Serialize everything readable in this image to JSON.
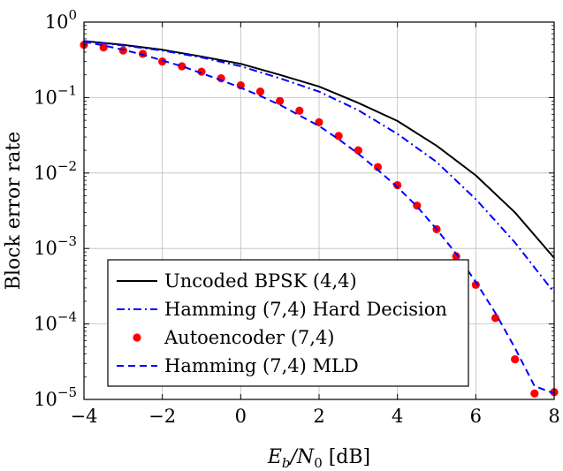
{
  "chart_data": {
    "type": "line",
    "xlabel": "E_b/N_0 [dB]",
    "xlabel_parts": {
      "main": "E",
      "sub1": "b",
      "mid": "/N",
      "sub2": "0",
      "unit": " [dB]"
    },
    "ylabel": "Block error rate",
    "xlim": [
      -4,
      8
    ],
    "ylim": [
      1e-05,
      1
    ],
    "yscale": "log",
    "grid": true,
    "legend_position": "bottom-left",
    "xticks": [
      {
        "value": -4,
        "label": "−4"
      },
      {
        "value": -2,
        "label": "−2"
      },
      {
        "value": 0,
        "label": "0"
      },
      {
        "value": 2,
        "label": "2"
      },
      {
        "value": 4,
        "label": "4"
      },
      {
        "value": 6,
        "label": "6"
      },
      {
        "value": 8,
        "label": "8"
      }
    ],
    "yticks": [
      {
        "value": 1,
        "base": "10",
        "exp": "0"
      },
      {
        "value": 0.1,
        "base": "10",
        "exp": "−1"
      },
      {
        "value": 0.01,
        "base": "10",
        "exp": "−2"
      },
      {
        "value": 0.001,
        "base": "10",
        "exp": "−3"
      },
      {
        "value": 0.0001,
        "base": "10",
        "exp": "−4"
      },
      {
        "value": 1e-05,
        "base": "10",
        "exp": "−5"
      }
    ],
    "series": [
      {
        "name": "Uncoded BPSK (4,4)",
        "color": "#000000",
        "style": "solid",
        "x": [
          -4,
          -3,
          -2,
          -1,
          0,
          1,
          2,
          3,
          4,
          5,
          6,
          7,
          8
        ],
        "y": [
          0.56,
          0.5,
          0.43,
          0.35,
          0.28,
          0.2,
          0.14,
          0.085,
          0.049,
          0.023,
          0.0093,
          0.003,
          0.00075
        ]
      },
      {
        "name": "Hamming (7,4) Hard Decision",
        "color": "#0000ff",
        "style": "dashdot",
        "x": [
          -4,
          -3,
          -2,
          -1,
          0,
          1,
          2,
          3,
          4,
          5,
          6,
          7,
          8
        ],
        "y": [
          0.56,
          0.49,
          0.42,
          0.34,
          0.26,
          0.18,
          0.12,
          0.068,
          0.033,
          0.014,
          0.0045,
          0.0012,
          0.00026
        ]
      },
      {
        "name": "Autoencoder (7,4)",
        "color": "#ff0000",
        "style": "markers",
        "x": [
          -4,
          -3.5,
          -3,
          -2.5,
          -2,
          -1.5,
          -1,
          -0.5,
          0,
          0.5,
          1,
          1.5,
          2,
          2.5,
          3,
          3.5,
          4,
          4.5,
          5,
          5.5,
          6,
          6.5,
          7,
          7.5,
          8
        ],
        "y": [
          0.5,
          0.46,
          0.42,
          0.38,
          0.3,
          0.26,
          0.22,
          0.18,
          0.145,
          0.12,
          0.09,
          0.067,
          0.047,
          0.031,
          0.02,
          0.012,
          0.0069,
          0.0037,
          0.0018,
          0.00079,
          0.00033,
          0.00012,
          3.4e-05,
          1.2e-05,
          1.25e-05
        ]
      },
      {
        "name": "Hamming (7,4) MLD",
        "color": "#0000ff",
        "style": "dashed",
        "x": [
          -4,
          -3.5,
          -3,
          -2.5,
          -2,
          -1.5,
          -1,
          -0.5,
          0,
          0.5,
          1,
          1.5,
          2,
          2.5,
          3,
          3.5,
          4,
          4.5,
          5,
          5.5,
          6,
          6.5,
          7,
          7.5,
          8
        ],
        "y": [
          0.55,
          0.49,
          0.43,
          0.37,
          0.31,
          0.26,
          0.21,
          0.17,
          0.135,
          0.105,
          0.08,
          0.058,
          0.042,
          0.028,
          0.018,
          0.011,
          0.0065,
          0.0036,
          0.0018,
          0.00085,
          0.00036,
          0.00014,
          4.8e-05,
          1.5e-05,
          1.2e-05
        ]
      }
    ]
  }
}
